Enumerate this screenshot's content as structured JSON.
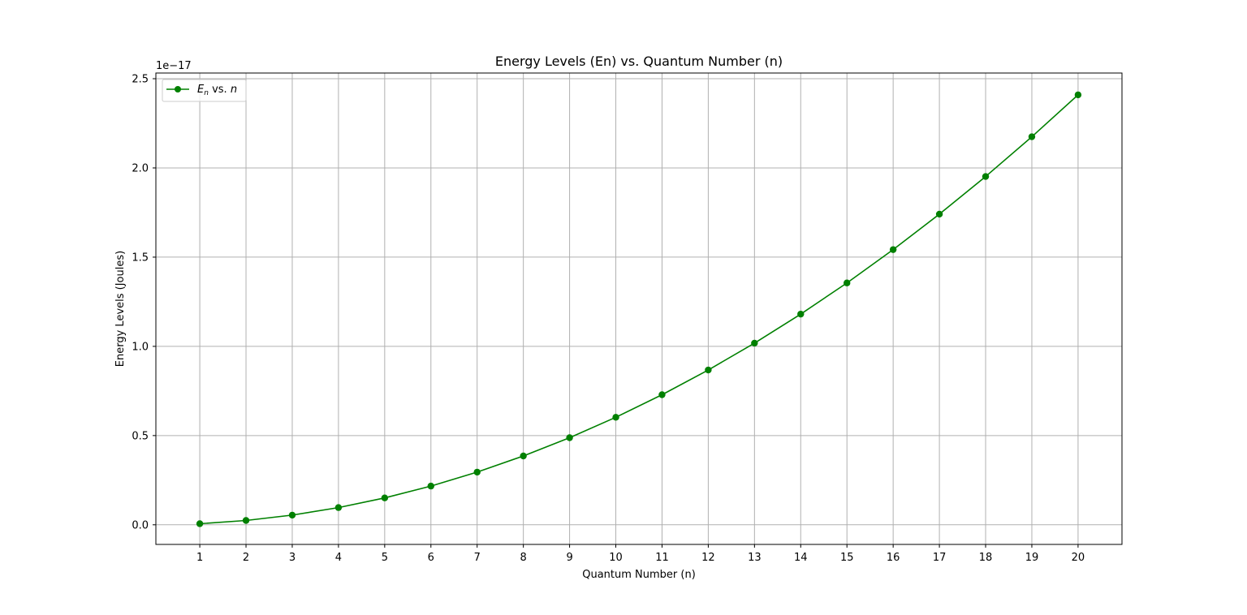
{
  "chart_data": {
    "type": "line",
    "title": "Energy Levels (En) vs. Quantum Number (n)",
    "xlabel": "Quantum Number (n)",
    "ylabel": "Energy Levels (Joules)",
    "y_offset_label": "1e−17",
    "y_scale_factor": 1e-17,
    "xlim": [
      0.05,
      20.95
    ],
    "ylim": [
      -1.21e-21,
      2.5319e-17
    ],
    "ylim_scaled": [
      -0.11,
      2.5319
    ],
    "x_ticks": [
      1,
      2,
      3,
      4,
      5,
      6,
      7,
      8,
      9,
      10,
      11,
      12,
      13,
      14,
      15,
      16,
      17,
      18,
      19,
      20
    ],
    "x_tick_labels": [
      "1",
      "2",
      "3",
      "4",
      "5",
      "6",
      "7",
      "8",
      "9",
      "10",
      "11",
      "12",
      "13",
      "14",
      "15",
      "16",
      "17",
      "18",
      "19",
      "20"
    ],
    "y_ticks": [
      0.0,
      0.5,
      1.0,
      1.5,
      2.0,
      2.5
    ],
    "y_tick_labels": [
      "0.0",
      "0.5",
      "1.0",
      "1.5",
      "2.0",
      "2.5"
    ],
    "grid": true,
    "legend_position": "top-left",
    "series": [
      {
        "legend_main": "E",
        "legend_sub": "n",
        "legend_mid": " vs. ",
        "legend_end": "n",
        "color": "#008000",
        "marker": "circle",
        "x": [
          1,
          2,
          3,
          4,
          5,
          6,
          7,
          8,
          9,
          10,
          11,
          12,
          13,
          14,
          15,
          16,
          17,
          18,
          19,
          20
        ],
        "values": [
          0.00602,
          0.0241,
          0.0542,
          0.0964,
          0.1506,
          0.2169,
          0.2952,
          0.3856,
          0.488,
          0.6024,
          0.7289,
          0.8675,
          1.0181,
          1.1807,
          1.3554,
          1.5422,
          1.741,
          1.9518,
          2.1747,
          2.4096
        ]
      }
    ]
  }
}
